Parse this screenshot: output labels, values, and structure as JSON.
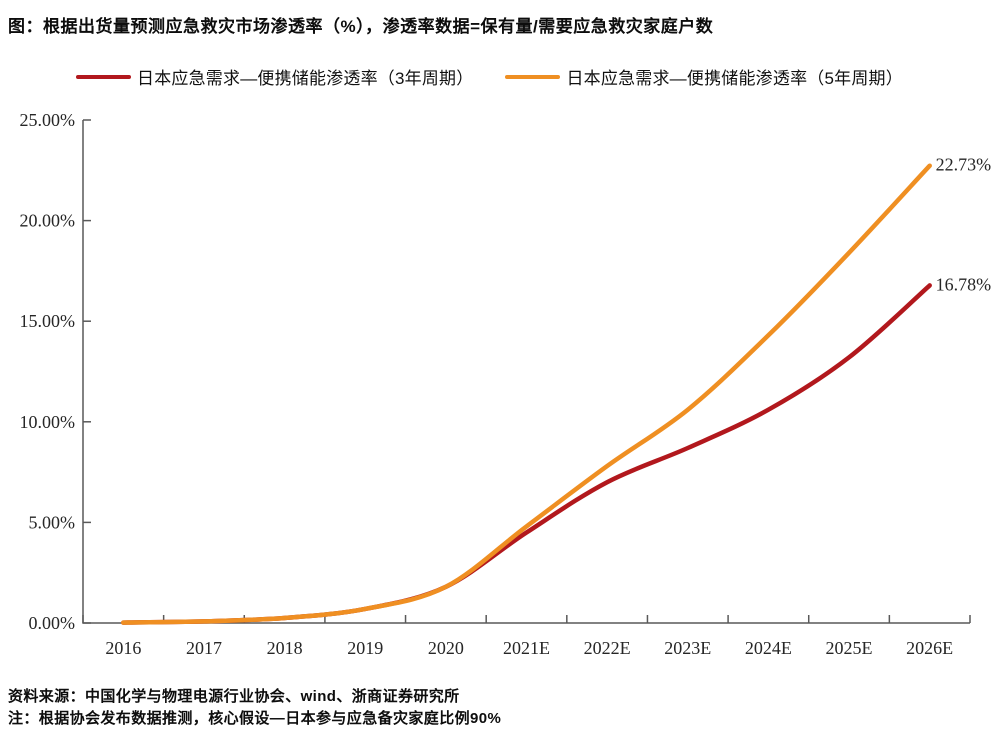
{
  "title": "图：根据出货量预测应急救灾市场渗透率（%），渗透率数据=保有量/需要应急救灾家庭户数",
  "footer": {
    "source": "资料来源：中国化学与物理电源行业协会、wind、浙商证券研究所",
    "note": "注：根据协会发布数据推测，核心假设—日本参与应急备灾家庭比例90%"
  },
  "chart_data": {
    "type": "line",
    "title": "根据出货量预测应急救灾市场渗透率（%）",
    "categories": [
      "2016",
      "2017",
      "2018",
      "2019",
      "2020",
      "2021E",
      "2022E",
      "2023E",
      "2024E",
      "2025E",
      "2026E"
    ],
    "series": [
      {
        "name": "日本应急需求—便携储能渗透率（3年周期）",
        "color": "#b2181d",
        "values": [
          0.02,
          0.08,
          0.25,
          0.7,
          1.8,
          4.5,
          7.0,
          8.7,
          10.6,
          13.2,
          16.78
        ],
        "end_label": "16.78%"
      },
      {
        "name": "日本应急需求—便携储能渗透率（5年周期）",
        "color": "#ef8f22",
        "values": [
          0.02,
          0.08,
          0.25,
          0.7,
          1.8,
          4.8,
          7.8,
          10.6,
          14.3,
          18.4,
          22.73
        ],
        "end_label": "22.73%"
      }
    ],
    "xlabel": "",
    "ylabel": "",
    "ylim": [
      0,
      25
    ],
    "ytick_values": [
      0,
      5,
      10,
      15,
      20,
      25
    ],
    "ytick_labels": [
      "0.00%",
      "5.00%",
      "10.00%",
      "15.00%",
      "20.00%",
      "25.00%"
    ],
    "grid": false,
    "legend_position": "top",
    "axis_color": "#595959",
    "label_color": "#262626"
  }
}
